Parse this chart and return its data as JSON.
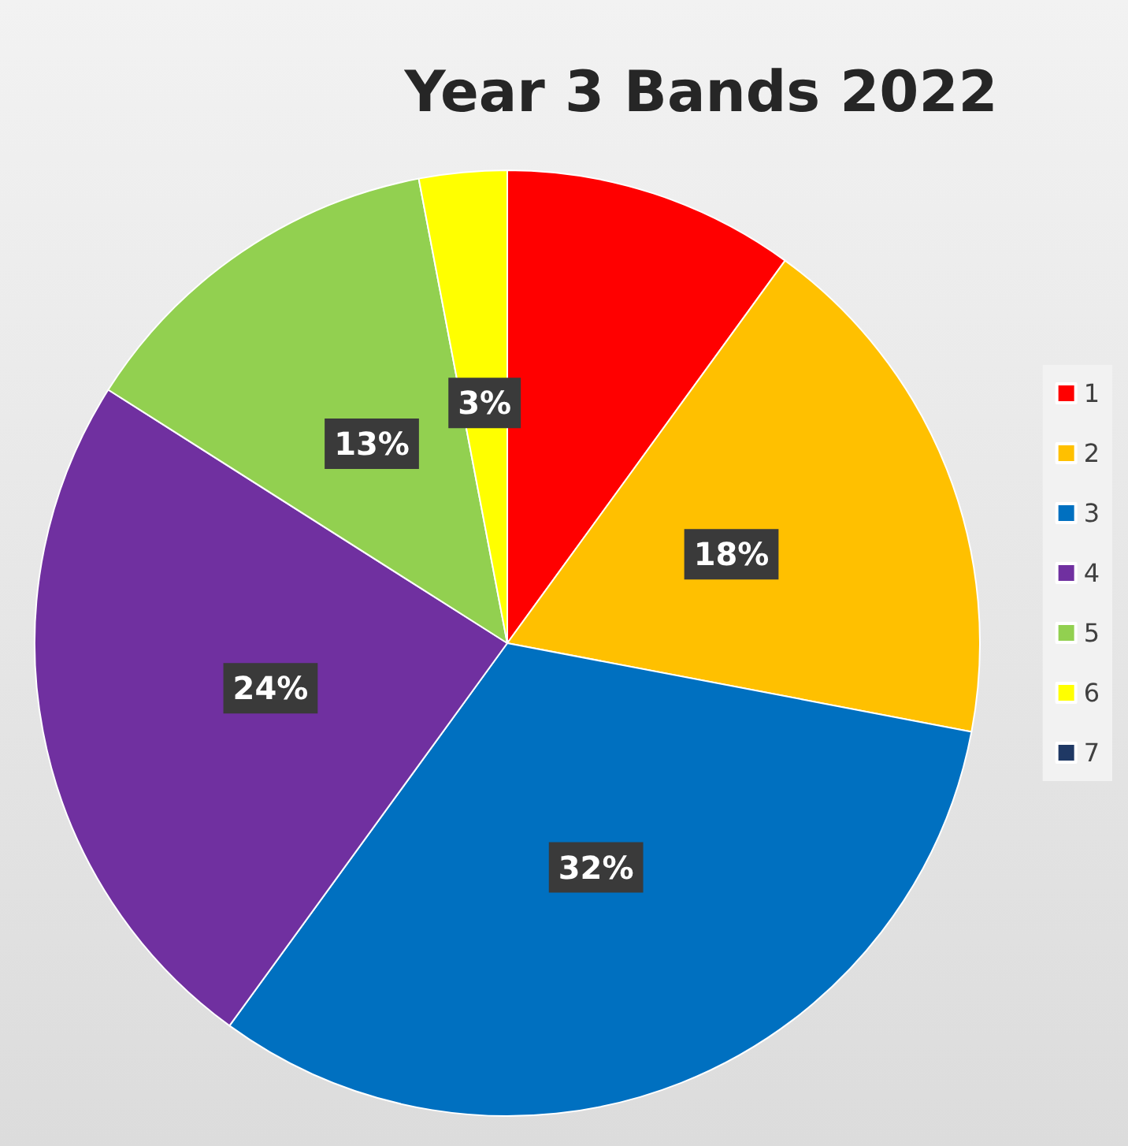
{
  "chart_data": {
    "type": "pie",
    "title": "Year 3 Bands 2022",
    "categories": [
      "1",
      "2",
      "3",
      "4",
      "5",
      "6",
      "7"
    ],
    "values": [
      10,
      18,
      32,
      24,
      13,
      3,
      0
    ],
    "colors": [
      "#ff0000",
      "#ffc000",
      "#0070c0",
      "#7030a0",
      "#92d050",
      "#ffff00",
      "#1f3864"
    ],
    "value_labels": [
      null,
      "18%",
      "32%",
      "24%",
      "13%",
      "3%",
      null
    ],
    "legend": "right"
  }
}
